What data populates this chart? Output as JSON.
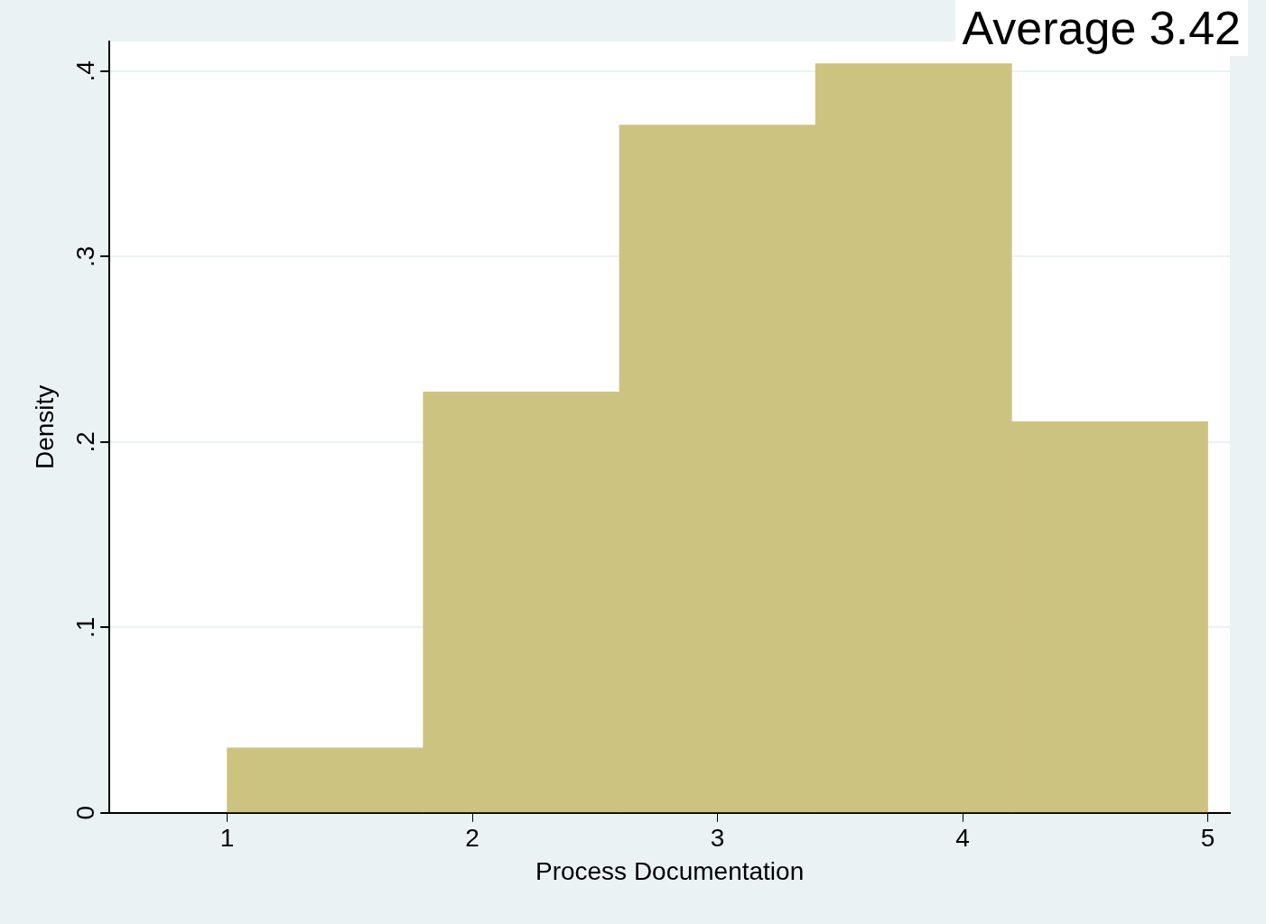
{
  "chart_data": {
    "type": "histogram",
    "xlabel": "Process Documentation",
    "ylabel": "Density",
    "annotations": [
      "Average 3.42"
    ],
    "bins": [
      1,
      1.8,
      2.6,
      3.4,
      4.2,
      5
    ],
    "values": [
      0.035,
      0.227,
      0.371,
      0.404,
      0.211
    ],
    "color": "#cdc381",
    "xlim": [
      0.52,
      5.09
    ],
    "xticks": [
      1,
      2,
      3,
      4,
      5
    ],
    "ylim": [
      0,
      0.416
    ],
    "yticks": [
      0,
      {
        "value": 0.1,
        "label": ".1"
      },
      {
        "value": 0.2,
        "label": ".2"
      },
      {
        "value": 0.3,
        "label": ".3"
      },
      {
        "value": 0.4,
        "label": ".4"
      }
    ],
    "grid": "y",
    "legend": false
  }
}
